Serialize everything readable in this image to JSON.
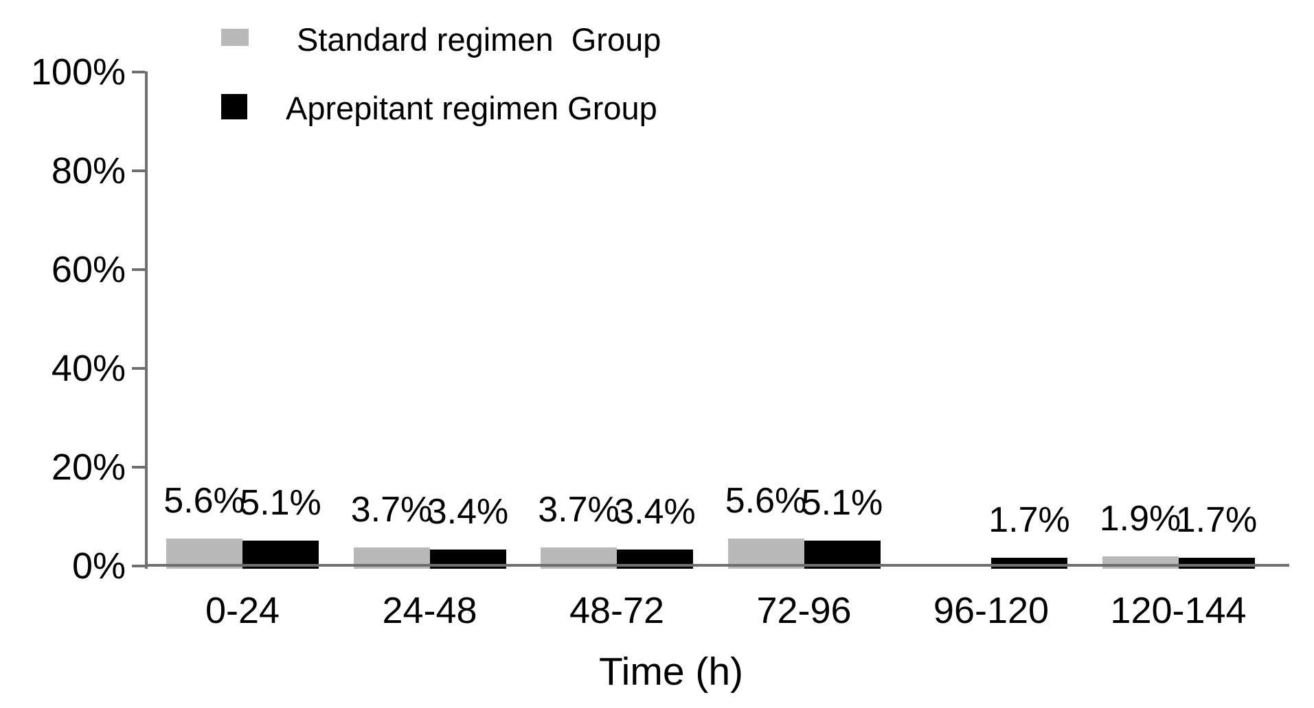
{
  "chart_data": {
    "type": "bar",
    "title": "",
    "categories": [
      "0-24",
      "24-48",
      "48-72",
      "72-96",
      "96-120",
      "120-144"
    ],
    "series": [
      {
        "name": "Standard regimen  Group",
        "color": "#b9b9b9",
        "values": [
          5.6,
          3.7,
          3.7,
          5.6,
          0,
          1.9
        ],
        "labels": [
          "5.6%",
          "3.7%",
          "3.7%",
          "5.6%",
          "",
          "1.9%"
        ]
      },
      {
        "name": "Aprepitant regimen Group",
        "color": "#000000",
        "values": [
          5.1,
          3.4,
          3.4,
          5.1,
          1.7,
          1.7
        ],
        "labels": [
          "5.1%",
          "3.4%",
          "3.4%",
          "5.1%",
          "1.7%",
          "1.7%"
        ]
      }
    ],
    "xlabel": "Time (h)",
    "ylabel": "",
    "ylim": [
      0,
      100
    ],
    "ytick_labels": [
      "0%",
      "20%",
      "40%",
      "60%",
      "80%",
      "100%"
    ],
    "grid": false,
    "legend_position": "top-left",
    "axis_color": "#6f6f6f",
    "text_color": "#000000"
  }
}
